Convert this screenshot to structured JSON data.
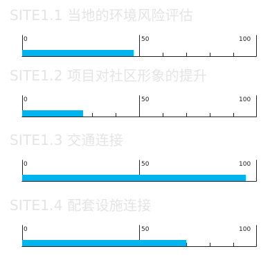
{
  "scale": {
    "min": 0,
    "max": 100,
    "tick_labels": [
      "0",
      "50",
      "100"
    ],
    "ticks": 10
  },
  "colors": {
    "fill": "#00b4ee",
    "title_text": "#e4e4e4",
    "scale_line": "#222222"
  },
  "sites": [
    {
      "title": "SITE1.1  当地的环境风险评估",
      "score": 47.5
    },
    {
      "title": "SITE1.2  项目对社区形象的提升",
      "score": 26
    },
    {
      "title": "SITE1.3  交通连接",
      "score": 95.5
    },
    {
      "title": "SITE1.4  配套设施连接",
      "score": 70
    }
  ]
}
